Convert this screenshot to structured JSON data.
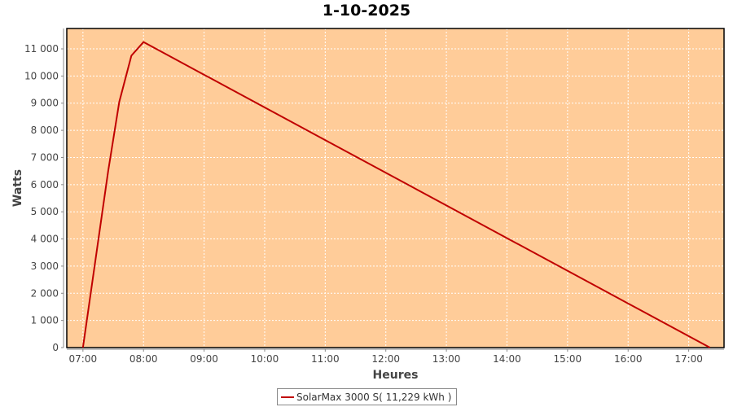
{
  "chart_data": {
    "type": "line",
    "title": "1-10-2025",
    "xlabel": "Heures",
    "ylabel": "Watts",
    "x_ticks": [
      "07:00",
      "08:00",
      "09:00",
      "10:00",
      "11:00",
      "12:00",
      "13:00",
      "14:00",
      "15:00",
      "16:00",
      "17:00"
    ],
    "y_ticks": [
      "0",
      "1 000",
      "2 000",
      "3 000",
      "4 000",
      "5 000",
      "6 000",
      "7 000",
      "8 000",
      "9 000",
      "10 000",
      "11 000"
    ],
    "xlim": [
      "06:44",
      "17:35"
    ],
    "ylim": [
      0,
      11750
    ],
    "grid": true,
    "background_color": "#ffcc99",
    "legend_position": "bottom",
    "series": [
      {
        "name": "SolarMax 3000 S( 11,229 kWh )",
        "color": "#c00000",
        "x": [
          "07:00",
          "07:25",
          "07:36",
          "07:48",
          "08:00",
          "17:21"
        ],
        "y": [
          0,
          6500,
          9050,
          10750,
          11250,
          0
        ]
      }
    ]
  }
}
